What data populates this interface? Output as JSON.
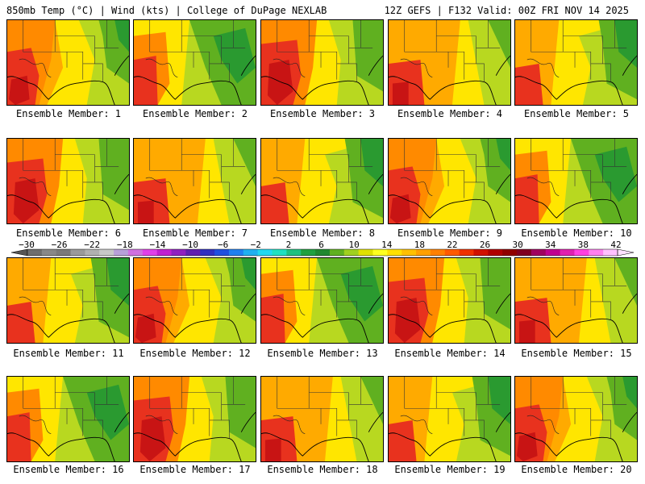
{
  "header": {
    "left_title": "850mb Temp (°C) | Wind (kts) | College of DuPage NEXLAB",
    "right_title": "12Z GEFS | F132 Valid: 00Z FRI NOV 14 2025"
  },
  "members": [
    {
      "label": "Ensemble Member: 1"
    },
    {
      "label": "Ensemble Member: 2"
    },
    {
      "label": "Ensemble Member: 3"
    },
    {
      "label": "Ensemble Member: 4"
    },
    {
      "label": "Ensemble Member: 5"
    },
    {
      "label": "Ensemble Member: 6"
    },
    {
      "label": "Ensemble Member: 7"
    },
    {
      "label": "Ensemble Member: 8"
    },
    {
      "label": "Ensemble Member: 9"
    },
    {
      "label": "Ensemble Member: 10"
    },
    {
      "label": "Ensemble Member: 11"
    },
    {
      "label": "Ensemble Member: 12"
    },
    {
      "label": "Ensemble Member: 13"
    },
    {
      "label": "Ensemble Member: 14"
    },
    {
      "label": "Ensemble Member: 15"
    },
    {
      "label": "Ensemble Member: 16"
    },
    {
      "label": "Ensemble Member: 17"
    },
    {
      "label": "Ensemble Member: 18"
    },
    {
      "label": "Ensemble Member: 19"
    },
    {
      "label": "Ensemble Member: 20"
    }
  ],
  "colorbar": {
    "tick_labels": [
      "−30",
      "−26",
      "−22",
      "−18",
      "−14",
      "−10",
      "−6",
      "−2",
      "2",
      "6",
      "10",
      "14",
      "18",
      "22",
      "26",
      "30",
      "34",
      "38",
      "42"
    ],
    "colors": [
      "#6e6e6e",
      "#888888",
      "#7a7a7a",
      "#9a9a9a",
      "#b0b0b0",
      "#c8c8c8",
      "#b8a0d8",
      "#d070e0",
      "#e040e8",
      "#c020d0",
      "#9020c0",
      "#6020b0",
      "#3030c0",
      "#2050e0",
      "#2080f0",
      "#20b0f0",
      "#20d8f0",
      "#20e0c0",
      "#20c080",
      "#20a040",
      "#208830",
      "#60b020",
      "#a0d020",
      "#e0e000",
      "#ffff20",
      "#ffe000",
      "#ffc000",
      "#ffa000",
      "#ff8000",
      "#ff5a00",
      "#f03000",
      "#d01000",
      "#b00000",
      "#900000",
      "#800020",
      "#a00060",
      "#c00090",
      "#e020b0",
      "#ff40e0",
      "#ff80f0",
      "#ffc0ff"
    ]
  },
  "map_colors": {
    "red": "#e8321e",
    "dred": "#c81414",
    "orange": "#ff8a00",
    "lorange": "#ffaa00",
    "yellow": "#ffe600",
    "lyellow": "#f0f000",
    "lgreen": "#b8d820",
    "green": "#60b020",
    "dgreen": "#2a9a30",
    "teal": "#10a060"
  }
}
